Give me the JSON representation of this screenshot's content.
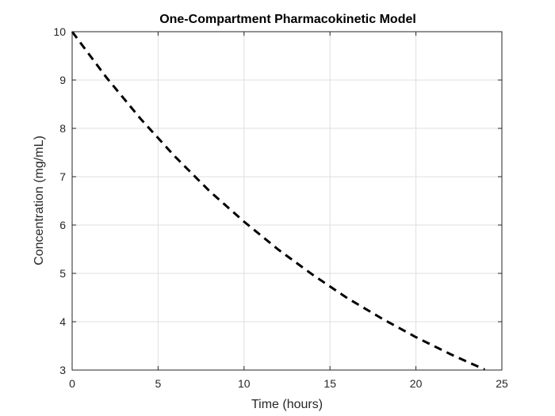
{
  "chart_data": {
    "type": "line",
    "title": "One-Compartment Pharmacokinetic Model",
    "xlabel": "Time (hours)",
    "ylabel": "Concentration (mg/mL)",
    "xlim": [
      0,
      25
    ],
    "ylim": [
      3,
      10
    ],
    "xticks": [
      0,
      5,
      10,
      15,
      20,
      25
    ],
    "yticks": [
      3,
      4,
      5,
      6,
      7,
      8,
      9,
      10
    ],
    "grid": true,
    "series": [
      {
        "name": "Concentration",
        "line_style": "dashed",
        "color": "#000000",
        "x": [
          0,
          2,
          4,
          6,
          8,
          10,
          12,
          14,
          16,
          18,
          20,
          22,
          24
        ],
        "y": [
          10.0,
          9.05,
          8.19,
          7.41,
          6.7,
          6.07,
          5.49,
          4.97,
          4.49,
          4.07,
          3.68,
          3.33,
          3.01
        ]
      }
    ]
  }
}
